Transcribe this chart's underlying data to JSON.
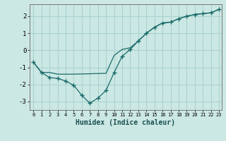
{
  "xlabel": "Humidex (Indice chaleur)",
  "background_color": "#cce8e4",
  "grid_color": "#aad4cf",
  "line_color": "#1a6b6b",
  "line1_x": [
    0,
    1,
    2,
    3,
    4,
    5,
    6,
    7,
    8,
    9,
    10,
    11,
    12,
    13,
    14,
    15,
    16,
    17,
    18,
    19,
    20,
    21,
    22,
    23
  ],
  "line1_y": [
    -0.7,
    -1.3,
    -1.6,
    -1.65,
    -1.8,
    -2.05,
    -2.65,
    -3.1,
    -2.8,
    -2.35,
    -1.3,
    -0.35,
    0.05,
    0.55,
    1.0,
    1.35,
    1.6,
    1.65,
    1.85,
    2.0,
    2.1,
    2.15,
    2.2,
    2.4
  ],
  "line2_x": [
    0,
    1,
    2,
    3,
    4,
    5,
    9,
    10,
    11,
    12,
    13,
    14,
    15,
    16,
    17,
    18,
    19,
    20,
    21,
    22,
    23
  ],
  "line2_y": [
    -0.7,
    -1.3,
    -1.3,
    -1.4,
    -1.4,
    -1.4,
    -1.35,
    -0.3,
    0.05,
    0.15,
    0.55,
    1.0,
    1.35,
    1.6,
    1.65,
    1.85,
    2.0,
    2.1,
    2.15,
    2.2,
    2.4
  ],
  "xlim_min": -0.5,
  "xlim_max": 23.3,
  "ylim_min": -3.5,
  "ylim_max": 2.7,
  "yticks": [
    -3,
    -2,
    -1,
    0,
    1,
    2
  ],
  "xticks": [
    0,
    1,
    2,
    3,
    4,
    5,
    6,
    7,
    8,
    9,
    10,
    11,
    12,
    13,
    14,
    15,
    16,
    17,
    18,
    19,
    20,
    21,
    22,
    23
  ]
}
